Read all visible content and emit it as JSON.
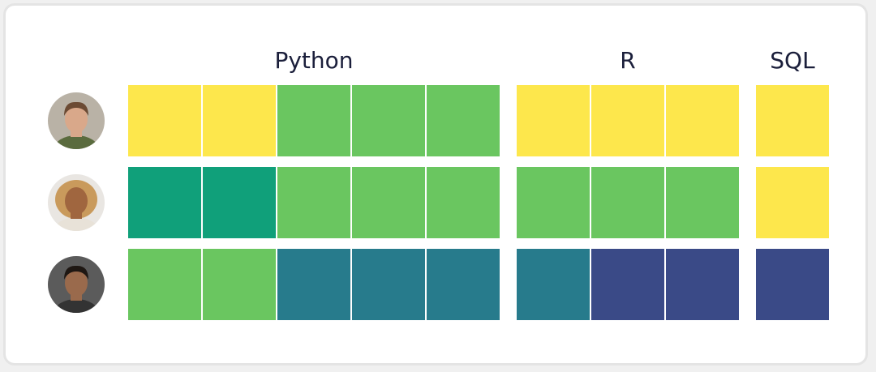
{
  "chart_data": {
    "type": "heatmap",
    "title": "",
    "column_groups": [
      {
        "label": "Python",
        "count": 5
      },
      {
        "label": "R",
        "count": 3
      },
      {
        "label": "SQL",
        "count": 1
      }
    ],
    "rows": [
      {
        "avatar": "avatar-1",
        "levels": [
          1,
          1,
          2,
          2,
          2,
          1,
          1,
          1,
          1
        ]
      },
      {
        "avatar": "avatar-2",
        "levels": [
          3,
          3,
          2,
          2,
          2,
          2,
          2,
          2,
          1
        ]
      },
      {
        "avatar": "avatar-3",
        "levels": [
          2,
          2,
          4,
          4,
          4,
          4,
          5,
          5,
          5
        ]
      }
    ],
    "level_colors": {
      "1": "#fde74c",
      "2": "#6ac660",
      "3": "#10a07a",
      "4": "#277b8c",
      "5": "#3a4a87"
    },
    "grid": false,
    "legend": "none"
  }
}
